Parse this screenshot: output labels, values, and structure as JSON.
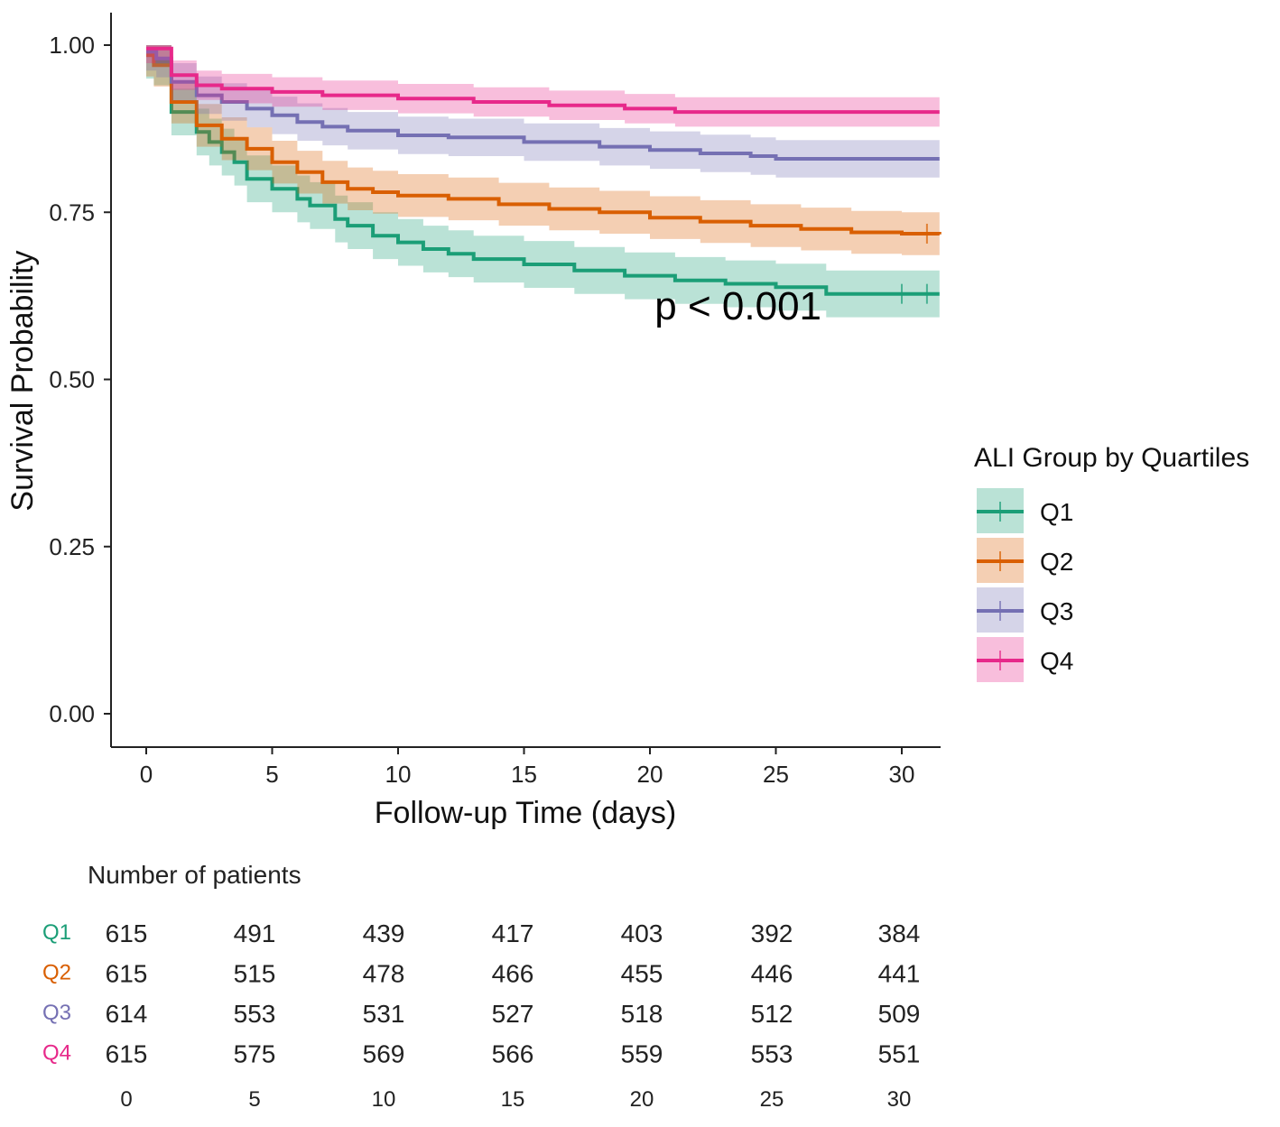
{
  "chart_data": {
    "type": "line",
    "subtype": "kaplan-meier survival curve",
    "xlabel": "Follow-up Time (days)",
    "ylabel": "Survival Probability",
    "xlim": [
      -1.5,
      31.5
    ],
    "ylim": [
      -0.045,
      1.05
    ],
    "x_ticks": [
      0,
      5,
      10,
      15,
      20,
      25,
      30
    ],
    "y_ticks": [
      0.0,
      0.25,
      0.5,
      0.75,
      1.0
    ],
    "y_tick_labels": [
      "0.00",
      "0.25",
      "0.50",
      "0.75",
      "1.00"
    ],
    "annotation": {
      "text": "p < 0.001",
      "x": 23.5,
      "y": 0.59
    },
    "legend": {
      "title": "ALI Group by Quartiles",
      "position": "right"
    },
    "series": [
      {
        "name": "Q1",
        "color": "#1B9E77",
        "ci_width": 0.035,
        "points": [
          [
            0,
            0.985
          ],
          [
            0.3,
            0.975
          ],
          [
            1,
            0.9
          ],
          [
            1.5,
            0.9
          ],
          [
            2,
            0.87
          ],
          [
            2.5,
            0.855
          ],
          [
            3,
            0.84
          ],
          [
            3.5,
            0.825
          ],
          [
            4,
            0.8
          ],
          [
            5,
            0.785
          ],
          [
            6,
            0.77
          ],
          [
            6.5,
            0.76
          ],
          [
            7.5,
            0.74
          ],
          [
            8,
            0.73
          ],
          [
            9,
            0.715
          ],
          [
            10,
            0.705
          ],
          [
            11,
            0.695
          ],
          [
            12,
            0.688
          ],
          [
            13,
            0.68
          ],
          [
            15,
            0.672
          ],
          [
            17,
            0.663
          ],
          [
            19,
            0.655
          ],
          [
            21,
            0.648
          ],
          [
            23,
            0.643
          ],
          [
            25,
            0.638
          ],
          [
            27,
            0.628
          ],
          [
            31.5,
            0.628
          ]
        ],
        "censor_marks": [
          30,
          31
        ]
      },
      {
        "name": "Q2",
        "color": "#D95F02",
        "ci_width": 0.032,
        "points": [
          [
            0,
            0.985
          ],
          [
            0.3,
            0.97
          ],
          [
            1,
            0.915
          ],
          [
            2,
            0.88
          ],
          [
            3,
            0.86
          ],
          [
            4,
            0.845
          ],
          [
            5,
            0.825
          ],
          [
            6,
            0.81
          ],
          [
            7,
            0.795
          ],
          [
            8,
            0.785
          ],
          [
            9,
            0.78
          ],
          [
            10,
            0.775
          ],
          [
            12,
            0.77
          ],
          [
            14,
            0.762
          ],
          [
            16,
            0.755
          ],
          [
            18,
            0.75
          ],
          [
            20,
            0.742
          ],
          [
            22,
            0.736
          ],
          [
            24,
            0.73
          ],
          [
            26,
            0.725
          ],
          [
            28,
            0.72
          ],
          [
            30,
            0.718
          ],
          [
            31.5,
            0.717
          ]
        ],
        "censor_marks": [
          31
        ]
      },
      {
        "name": "Q3",
        "color": "#7570B3",
        "ci_width": 0.028,
        "points": [
          [
            0,
            0.99
          ],
          [
            0.4,
            0.98
          ],
          [
            1,
            0.945
          ],
          [
            2,
            0.925
          ],
          [
            3,
            0.915
          ],
          [
            4,
            0.905
          ],
          [
            5,
            0.895
          ],
          [
            6,
            0.885
          ],
          [
            7,
            0.878
          ],
          [
            8,
            0.872
          ],
          [
            10,
            0.865
          ],
          [
            12,
            0.862
          ],
          [
            15,
            0.855
          ],
          [
            18,
            0.848
          ],
          [
            20,
            0.843
          ],
          [
            22,
            0.838
          ],
          [
            24,
            0.834
          ],
          [
            25,
            0.83
          ],
          [
            31.5,
            0.83
          ]
        ],
        "censor_marks": []
      },
      {
        "name": "Q4",
        "color": "#E7298A",
        "ci_width": 0.022,
        "points": [
          [
            0,
            0.995
          ],
          [
            1,
            0.955
          ],
          [
            2,
            0.94
          ],
          [
            3,
            0.935
          ],
          [
            5,
            0.93
          ],
          [
            7,
            0.925
          ],
          [
            10,
            0.92
          ],
          [
            13,
            0.915
          ],
          [
            16,
            0.91
          ],
          [
            19,
            0.905
          ],
          [
            21,
            0.9
          ],
          [
            31.5,
            0.9
          ]
        ],
        "censor_marks": []
      }
    ],
    "risk_table": {
      "title": "Number of patients",
      "times": [
        0,
        5,
        10,
        15,
        20,
        25,
        30
      ],
      "rows": [
        {
          "group": "Q1",
          "color": "#1B9E77",
          "counts": [
            615,
            491,
            439,
            417,
            403,
            392,
            384
          ]
        },
        {
          "group": "Q2",
          "color": "#D95F02",
          "counts": [
            615,
            515,
            478,
            466,
            455,
            446,
            441
          ]
        },
        {
          "group": "Q3",
          "color": "#7570B3",
          "counts": [
            614,
            553,
            531,
            527,
            518,
            512,
            509
          ]
        },
        {
          "group": "Q4",
          "color": "#E7298A",
          "counts": [
            615,
            575,
            569,
            566,
            559,
            553,
            551
          ]
        }
      ]
    }
  }
}
